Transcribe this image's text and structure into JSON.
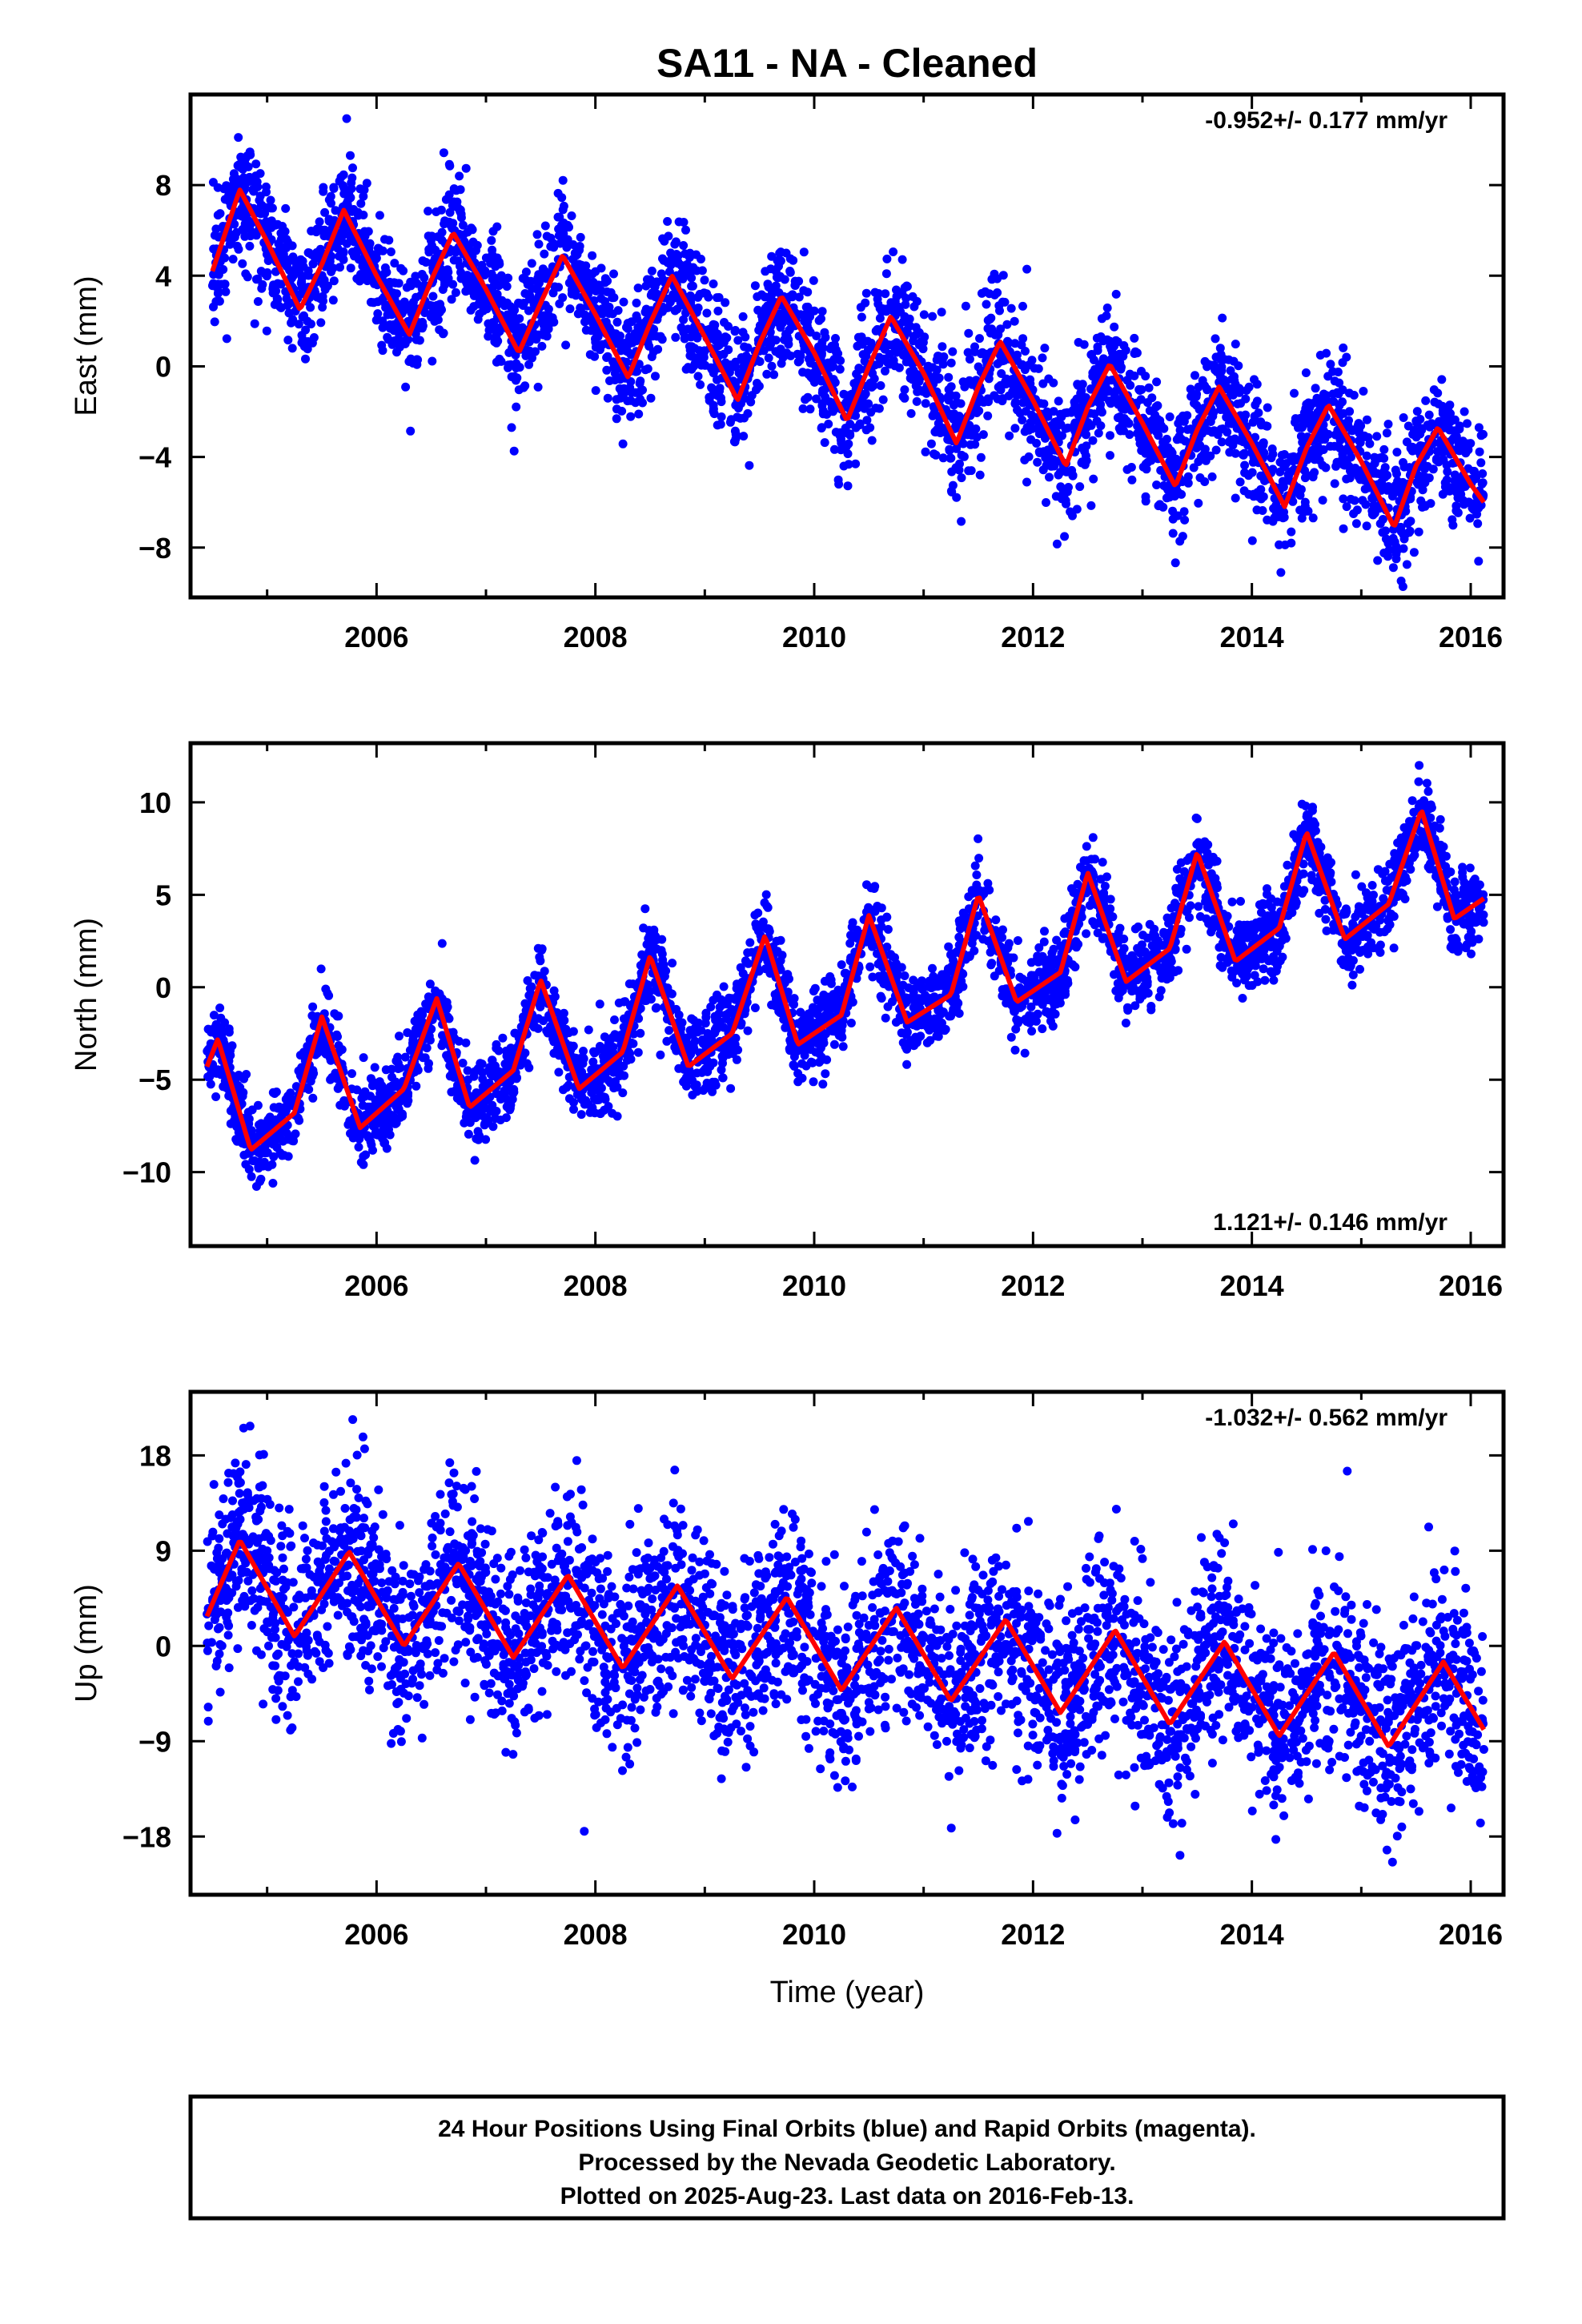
{
  "chart_data": {
    "type": "scatter",
    "title": "SA11  - NA - Cleaned",
    "xlabel": "Time (year)",
    "xlim": [
      2004.3,
      2016.3
    ],
    "x_ticks": [
      2006,
      2008,
      2010,
      2012,
      2014,
      2016
    ],
    "colors": {
      "points": "#0000ff",
      "model": "#ff0000",
      "frame": "#000000"
    },
    "point_density_per_year": 310,
    "panels": [
      {
        "ylabel": "East (mm)",
        "rate_text": "-0.952+/- 0.177 mm/yr",
        "rate_position": "top-right",
        "ylim": [
          -10.2,
          12
        ],
        "y_ticks": [
          -8,
          -4,
          0,
          4,
          8
        ],
        "scatter_noise_mm": 1.4,
        "model": {
          "x": [
            2004.5,
            2004.75,
            2005.0,
            2005.3,
            2005.5,
            2005.7,
            2006.0,
            2006.3,
            2006.5,
            2006.7,
            2007.0,
            2007.3,
            2007.5,
            2007.7,
            2008.0,
            2008.3,
            2008.5,
            2008.7,
            2009.0,
            2009.3,
            2009.5,
            2009.7,
            2010.0,
            2010.3,
            2010.5,
            2010.7,
            2011.0,
            2011.3,
            2011.5,
            2011.7,
            2012.0,
            2012.3,
            2012.5,
            2012.7,
            2013.0,
            2013.3,
            2013.5,
            2013.7,
            2014.0,
            2014.3,
            2014.5,
            2014.7,
            2015.0,
            2015.3,
            2015.5,
            2015.7,
            2016.0,
            2016.12
          ],
          "y": [
            4.2,
            7.8,
            5.5,
            2.5,
            4.5,
            6.9,
            4.0,
            1.4,
            3.8,
            5.9,
            3.4,
            0.6,
            2.8,
            4.9,
            2.3,
            -0.5,
            1.9,
            4.0,
            1.3,
            -1.5,
            1.0,
            3.1,
            0.6,
            -2.4,
            0.0,
            2.2,
            -0.3,
            -3.4,
            -0.9,
            1.1,
            -1.5,
            -4.4,
            -1.8,
            0.1,
            -2.5,
            -5.3,
            -2.8,
            -0.9,
            -3.4,
            -6.2,
            -3.6,
            -1.7,
            -4.2,
            -7.1,
            -4.4,
            -2.7,
            -5.2,
            -6.0
          ]
        }
      },
      {
        "ylabel": "North (mm)",
        "rate_text": "1.121+/- 0.146 mm/yr",
        "rate_position": "bottom-right",
        "ylim": [
          -14,
          13.2
        ],
        "y_ticks": [
          -10,
          -5,
          0,
          5,
          10
        ],
        "scatter_noise_mm": 1.1,
        "model": {
          "x": [
            2004.45,
            2004.55,
            2004.85,
            2005.25,
            2005.5,
            2005.85,
            2006.25,
            2006.55,
            2006.85,
            2007.25,
            2007.5,
            2007.85,
            2008.25,
            2008.5,
            2008.85,
            2009.25,
            2009.55,
            2009.85,
            2010.25,
            2010.5,
            2010.85,
            2011.25,
            2011.5,
            2011.85,
            2012.25,
            2012.5,
            2012.85,
            2013.25,
            2013.5,
            2013.85,
            2014.25,
            2014.5,
            2014.85,
            2015.25,
            2015.55,
            2015.85,
            2016.12
          ],
          "y": [
            -4.3,
            -2.8,
            -8.8,
            -6.8,
            -1.6,
            -7.6,
            -5.5,
            -0.6,
            -6.5,
            -4.5,
            0.4,
            -5.5,
            -3.5,
            1.7,
            -4.3,
            -2.5,
            2.8,
            -3.1,
            -1.5,
            3.9,
            -1.9,
            -0.4,
            5.0,
            -0.8,
            0.8,
            6.2,
            0.3,
            2.1,
            7.3,
            1.4,
            3.2,
            8.4,
            2.6,
            4.5,
            9.6,
            3.7,
            4.8
          ]
        }
      },
      {
        "ylabel": "Up (mm)",
        "rate_text": "-1.032+/- 0.562 mm/yr",
        "rate_position": "top-right",
        "ylim": [
          -23.5,
          24
        ],
        "y_ticks": [
          -18,
          -9,
          0,
          9,
          18
        ],
        "scatter_noise_mm": 4.5,
        "model": {
          "x": [
            2004.45,
            2004.75,
            2005.25,
            2005.75,
            2006.25,
            2006.75,
            2007.25,
            2007.75,
            2008.25,
            2008.75,
            2009.25,
            2009.75,
            2010.25,
            2010.75,
            2011.25,
            2011.75,
            2012.25,
            2012.75,
            2013.25,
            2013.75,
            2014.25,
            2014.75,
            2015.25,
            2015.75,
            2016.12
          ],
          "y": [
            2.8,
            10.0,
            0.9,
            8.9,
            0.0,
            7.8,
            -1.1,
            6.7,
            -2.1,
            5.7,
            -3.1,
            4.6,
            -4.2,
            3.6,
            -5.2,
            2.5,
            -6.3,
            1.5,
            -7.4,
            0.4,
            -8.5,
            -0.6,
            -9.5,
            -1.5,
            -7.9
          ]
        }
      }
    ],
    "footer_lines": [
      "24 Hour Positions Using Final Orbits (blue) and Rapid Orbits (magenta).",
      "Processed by the Nevada Geodetic Laboratory.",
      "Plotted on 2025-Aug-23. Last data on 2016-Feb-13."
    ]
  }
}
